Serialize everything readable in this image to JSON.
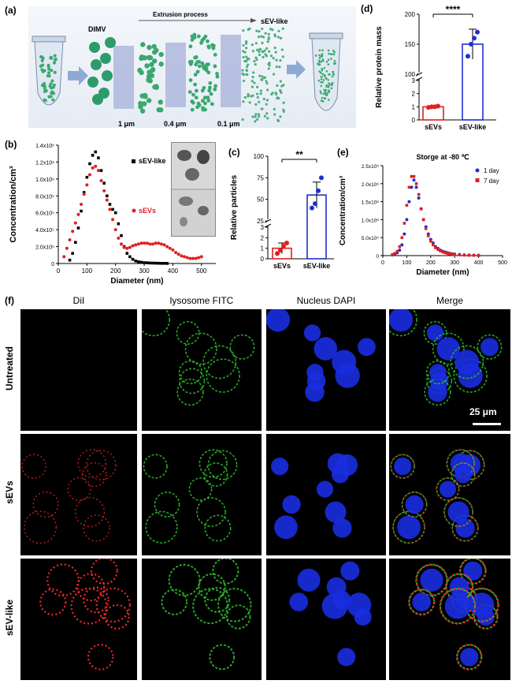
{
  "panels": {
    "a": {
      "label": "(a)",
      "dimv": "DIMV",
      "process": "Extrusion process",
      "product": "sEV-like",
      "pores": [
        "1 μm",
        "0.4 μm",
        "0.1 μm"
      ]
    },
    "b": {
      "label": "(b)"
    },
    "c": {
      "label": "(c)"
    },
    "d": {
      "label": "(d)"
    },
    "e": {
      "label": "(e)"
    },
    "f": {
      "label": "(f)",
      "columns": [
        "DiI",
        "lysosome FITC",
        "Nucleus DAPI",
        "Merge"
      ],
      "rows": [
        "Untreated",
        "sEVs",
        "sEV-like"
      ],
      "scalebar": "25 μm"
    }
  },
  "colors": {
    "sev_red": "#e02020",
    "sevlike_blue": "#1f2fd0",
    "black": "#000000",
    "dot_green": "#3aa86f",
    "tube_blue": "#8fa9d6"
  },
  "chart_data": [
    {
      "id": "b",
      "type": "scatter",
      "ylabel": "Concentration/cm³",
      "xlabel": "Diameter (nm)",
      "xlim": [
        0,
        550
      ],
      "ylim": [
        0,
        1400000
      ],
      "xticks": [
        "0",
        "100",
        "200",
        "300",
        "400",
        "500"
      ],
      "yticks": [
        "0",
        "2.0x10⁵",
        "4.0x10⁵",
        "6.0x10⁵",
        "8.0x10⁵",
        "1.0x10⁶",
        "1.2x10⁶",
        "1.4x10⁶"
      ],
      "series": [
        {
          "name": "sEV-like",
          "color": "#000000",
          "x": [
            40,
            50,
            60,
            70,
            80,
            90,
            100,
            110,
            120,
            130,
            140,
            150,
            160,
            170,
            180,
            190,
            200,
            210,
            220,
            230,
            240,
            250,
            260,
            270,
            280,
            290,
            300,
            310,
            320,
            330,
            340,
            350,
            360,
            370,
            380
          ],
          "y": [
            40000,
            120000,
            250000,
            420000,
            620000,
            840000,
            1020000,
            1180000,
            1280000,
            1320000,
            1250000,
            1100000,
            950000,
            800000,
            700000,
            640000,
            600000,
            470000,
            330000,
            200000,
            120000,
            80000,
            50000,
            30000,
            20000,
            15000,
            10000,
            8000,
            6000,
            5000,
            4000,
            3000,
            2000,
            2000,
            1000
          ]
        },
        {
          "name": "sEVs",
          "color": "#e02020",
          "x": [
            20,
            30,
            40,
            50,
            60,
            70,
            80,
            90,
            100,
            110,
            120,
            130,
            140,
            150,
            160,
            170,
            180,
            190,
            200,
            210,
            220,
            230,
            240,
            250,
            260,
            270,
            280,
            290,
            300,
            310,
            320,
            330,
            340,
            350,
            360,
            370,
            380,
            390,
            400,
            410,
            420,
            430,
            440,
            450,
            460,
            470,
            480,
            490,
            500
          ],
          "y": [
            80000,
            180000,
            280000,
            380000,
            480000,
            580000,
            700000,
            820000,
            930000,
            1050000,
            1130000,
            1150000,
            1100000,
            980000,
            860000,
            750000,
            640000,
            520000,
            400000,
            300000,
            230000,
            190000,
            180000,
            190000,
            210000,
            220000,
            230000,
            240000,
            240000,
            240000,
            230000,
            230000,
            240000,
            240000,
            230000,
            220000,
            200000,
            180000,
            160000,
            130000,
            110000,
            90000,
            80000,
            70000,
            60000,
            60000,
            60000,
            70000,
            80000
          ]
        }
      ],
      "annotations": {
        "legend": [
          "sEV-like",
          "sEVs"
        ]
      }
    },
    {
      "id": "c",
      "type": "bar",
      "ylabel": "Relative particles",
      "categories": [
        "sEVs",
        "sEV-like"
      ],
      "values": [
        1,
        55
      ],
      "error": [
        0.5,
        15
      ],
      "points": [
        [
          0.5,
          0.8,
          1.2,
          1.5
        ],
        [
          40,
          45,
          60,
          75
        ]
      ],
      "yticks": [
        "0",
        "1",
        "2",
        "3",
        "25",
        "50",
        "75",
        "100"
      ],
      "significance": "**"
    },
    {
      "id": "d",
      "type": "bar",
      "ylabel": "Relative protein mass",
      "categories": [
        "sEVs",
        "sEV-like"
      ],
      "values": [
        1,
        150
      ],
      "error": [
        0.05,
        25
      ],
      "points": [
        [
          0.95,
          1.0,
          1.0,
          1.05
        ],
        [
          130,
          150,
          160,
          170
        ]
      ],
      "yticks": [
        "0",
        "1",
        "2",
        "3",
        "100",
        "150",
        "200"
      ],
      "significance": "****"
    },
    {
      "id": "e",
      "type": "scatter",
      "title": "Storge at -80 ℃",
      "ylabel": "Concentration/cm³",
      "xlabel": "Diameter (nm)",
      "xlim": [
        0,
        500
      ],
      "ylim": [
        0,
        2500000
      ],
      "xticks": [
        "0",
        "100",
        "200",
        "300",
        "400",
        "500"
      ],
      "yticks": [
        "0",
        "5.0x10⁵",
        "1.0x10⁶",
        "1.5x10⁶",
        "2.0x10⁶",
        "2.5x10⁶"
      ],
      "series": [
        {
          "name": "1 day",
          "color": "#1f2fd0",
          "x": [
            40,
            50,
            60,
            70,
            80,
            90,
            100,
            110,
            120,
            130,
            140,
            150,
            160,
            170,
            180,
            190,
            200,
            210,
            220,
            230,
            240,
            250,
            260,
            270,
            280,
            290,
            300,
            320,
            340,
            360,
            380,
            400
          ],
          "y": [
            20000,
            40000,
            80000,
            150000,
            300000,
            600000,
            1000000,
            1500000,
            1900000,
            2100000,
            1900000,
            1600000,
            1300000,
            1000000,
            800000,
            600000,
            450000,
            350000,
            250000,
            200000,
            150000,
            120000,
            100000,
            80000,
            60000,
            50000,
            40000,
            30000,
            20000,
            15000,
            10000,
            8000
          ]
        },
        {
          "name": "7 day",
          "color": "#e02020",
          "x": [
            40,
            50,
            60,
            70,
            80,
            90,
            100,
            110,
            120,
            130,
            140,
            150,
            160,
            170,
            180,
            190,
            200,
            210,
            220,
            230,
            240,
            250,
            260,
            270,
            280,
            290,
            300,
            320,
            340,
            360,
            380,
            400
          ],
          "y": [
            30000,
            60000,
            120000,
            250000,
            500000,
            900000,
            1400000,
            1900000,
            2200000,
            2200000,
            2000000,
            1700000,
            1300000,
            1000000,
            750000,
            550000,
            400000,
            300000,
            220000,
            170000,
            130000,
            100000,
            80000,
            60000,
            50000,
            40000,
            30000,
            20000,
            15000,
            10000,
            8000,
            5000
          ]
        }
      ]
    }
  ]
}
